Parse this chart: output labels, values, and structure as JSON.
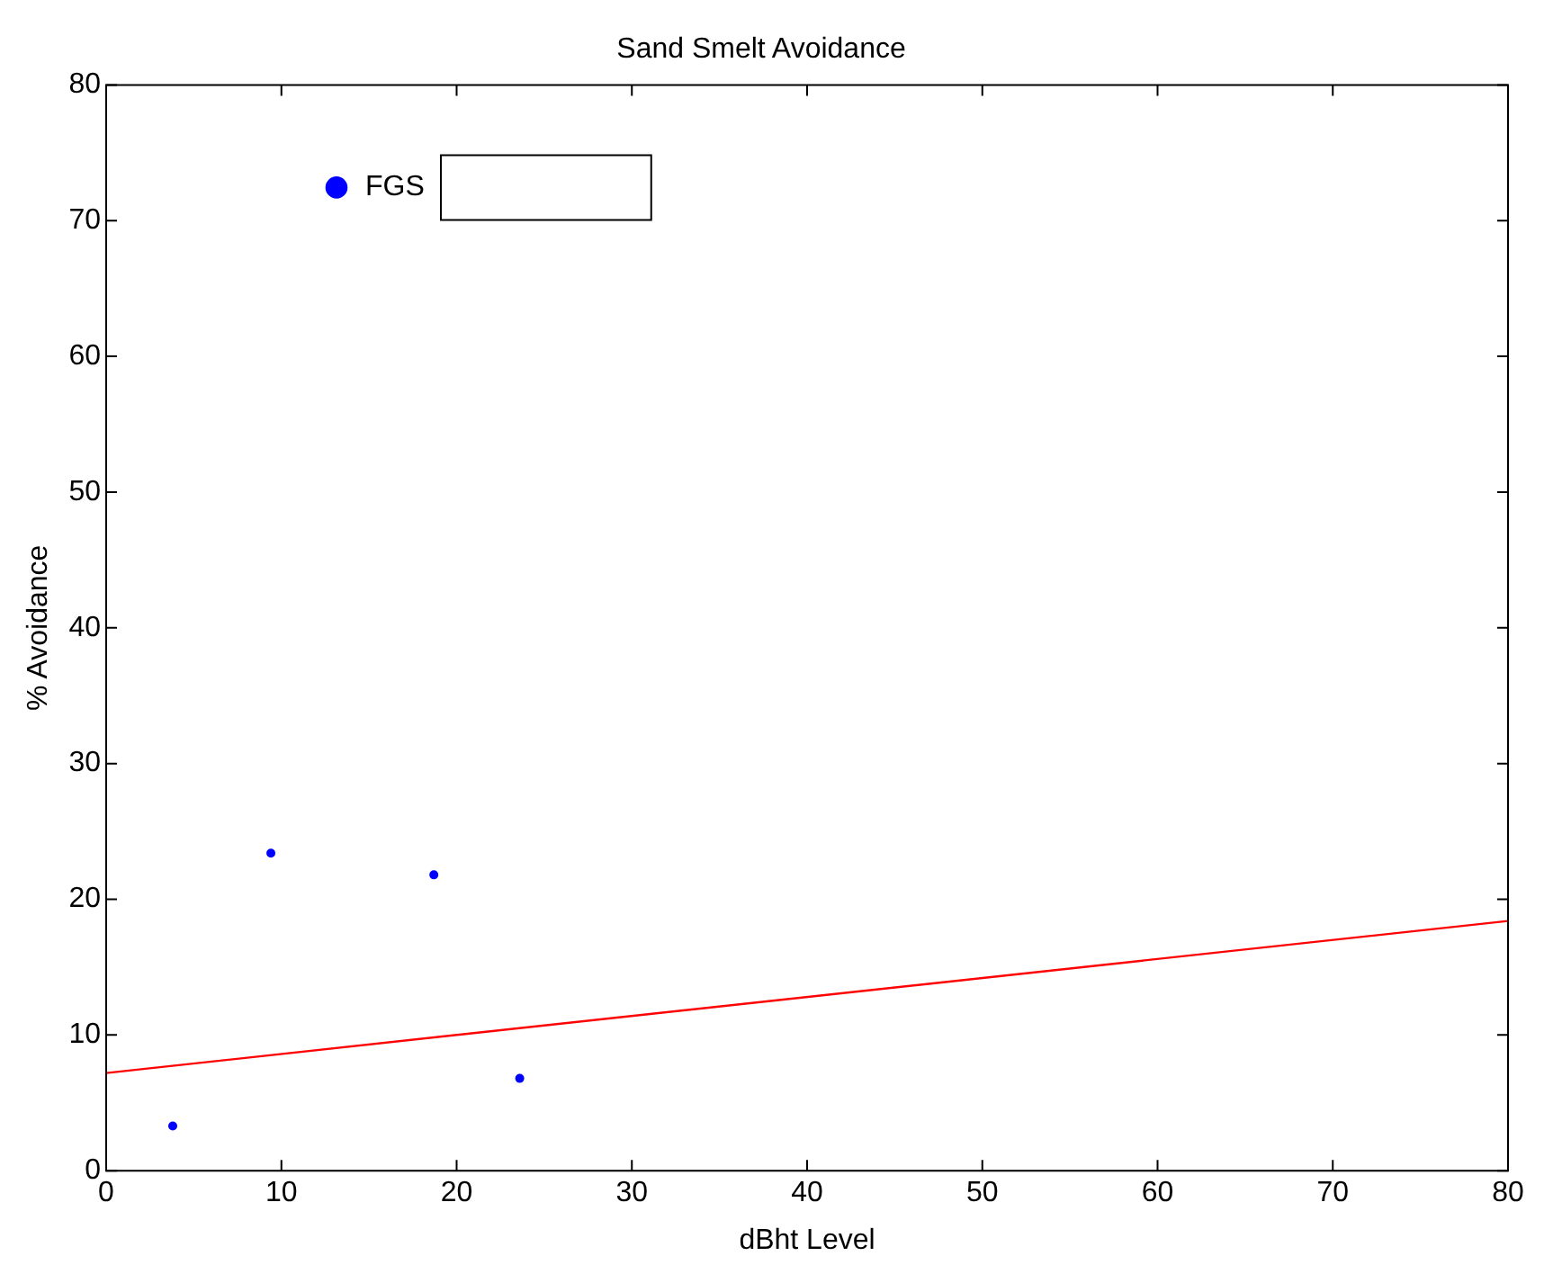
{
  "chart_data": {
    "type": "scatter",
    "title": "Sand Smelt Avoidance",
    "xlabel": "dBht Level",
    "ylabel": "% Avoidance",
    "xlim": [
      0,
      80
    ],
    "xticks": [
      0,
      10,
      20,
      30,
      40,
      50,
      60,
      70,
      80
    ],
    "ylim": [
      0,
      80
    ],
    "yticks": [
      0,
      10,
      20,
      30,
      40,
      50,
      60,
      70,
      80
    ],
    "grid": false,
    "legend": "top left",
    "series": [
      {
        "name": "FGS",
        "color": "#0000ff",
        "marker": "circle",
        "x": [
          3.8,
          9.4,
          18.7,
          23.6
        ],
        "values": [
          3.3,
          23.4,
          21.8,
          6.8
        ]
      },
      {
        "type": "line",
        "color": "#ff0000",
        "marker": "none",
        "x": [
          0,
          80
        ],
        "values": [
          7.2,
          18.4
        ]
      }
    ]
  }
}
